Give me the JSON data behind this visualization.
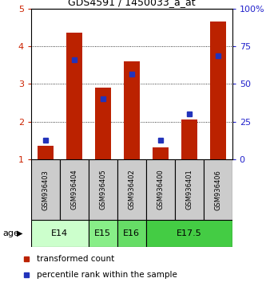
{
  "title": "GDS4591 / 1450033_a_at",
  "samples": [
    "GSM936403",
    "GSM936404",
    "GSM936405",
    "GSM936402",
    "GSM936400",
    "GSM936401",
    "GSM936406"
  ],
  "red_values": [
    1.35,
    4.35,
    2.9,
    3.6,
    1.32,
    2.05,
    4.65
  ],
  "blue_pct": [
    12.5,
    66.25,
    40.0,
    56.25,
    12.5,
    30.0,
    68.75
  ],
  "ylim_left": [
    1,
    5
  ],
  "ylim_right": [
    0,
    100
  ],
  "yticks_left": [
    1,
    2,
    3,
    4,
    5
  ],
  "yticks_right": [
    0,
    25,
    50,
    75,
    100
  ],
  "age_groups": [
    {
      "label": "E14",
      "start": 0,
      "end": 2,
      "color": "#ccffcc"
    },
    {
      "label": "E15",
      "start": 2,
      "end": 3,
      "color": "#88ee88"
    },
    {
      "label": "E16",
      "start": 3,
      "end": 4,
      "color": "#66dd66"
    },
    {
      "label": "E17.5",
      "start": 4,
      "end": 7,
      "color": "#44cc44"
    }
  ],
  "bar_color": "#bb2200",
  "dot_color": "#2233bb",
  "bar_width": 0.55,
  "tick_color_left": "#cc2200",
  "tick_color_right": "#2222cc",
  "grid_yticks": [
    2,
    3,
    4
  ],
  "sample_box_color": "#cccccc",
  "title_fontsize": 9,
  "tick_fontsize": 8,
  "sample_fontsize": 6,
  "age_fontsize": 8,
  "legend_fontsize": 7.5
}
